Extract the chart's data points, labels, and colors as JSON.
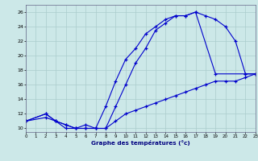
{
  "xlabel": "Graphe des températures (°c)",
  "bg_color": "#cce8e8",
  "grid_color": "#aacccc",
  "line_color": "#0000cc",
  "line1_x": [
    0,
    2,
    3,
    4,
    5,
    6,
    7,
    8,
    9,
    10,
    11,
    12,
    13,
    14,
    15,
    16,
    17,
    19,
    22,
    23
  ],
  "line1_y": [
    11,
    12,
    11,
    10,
    10,
    10,
    10,
    13,
    16.5,
    19.5,
    21,
    23,
    24,
    25,
    25.5,
    25.5,
    26,
    17.5,
    17.5,
    17.5
  ],
  "line2_x": [
    0,
    2,
    3,
    4,
    5,
    6,
    7,
    8,
    9,
    10,
    11,
    12,
    13,
    14,
    15,
    16,
    17,
    18,
    19,
    20,
    21,
    22,
    23
  ],
  "line2_y": [
    11,
    12,
    11,
    10.5,
    10,
    10.5,
    10,
    10,
    13,
    16,
    19,
    21,
    23.5,
    24.5,
    25.5,
    25.5,
    26,
    25.5,
    25,
    24,
    22,
    17.5,
    17.5
  ],
  "line3_x": [
    0,
    2,
    3,
    4,
    5,
    6,
    7,
    8,
    9,
    10,
    11,
    12,
    13,
    14,
    15,
    16,
    17,
    18,
    19,
    20,
    21,
    22,
    23
  ],
  "line3_y": [
    11,
    11.5,
    11,
    10.5,
    10,
    10,
    10,
    10,
    11,
    12,
    12.5,
    13,
    13.5,
    14,
    14.5,
    15,
    15.5,
    16,
    16.5,
    16.5,
    16.5,
    17,
    17.5
  ],
  "xlim": [
    0,
    23
  ],
  "ylim": [
    9.5,
    27
  ],
  "xticks": [
    0,
    1,
    2,
    3,
    4,
    5,
    6,
    7,
    8,
    9,
    10,
    11,
    12,
    13,
    14,
    15,
    16,
    17,
    18,
    19,
    20,
    21,
    22,
    23
  ],
  "yticks": [
    10,
    12,
    14,
    16,
    18,
    20,
    22,
    24,
    26
  ]
}
